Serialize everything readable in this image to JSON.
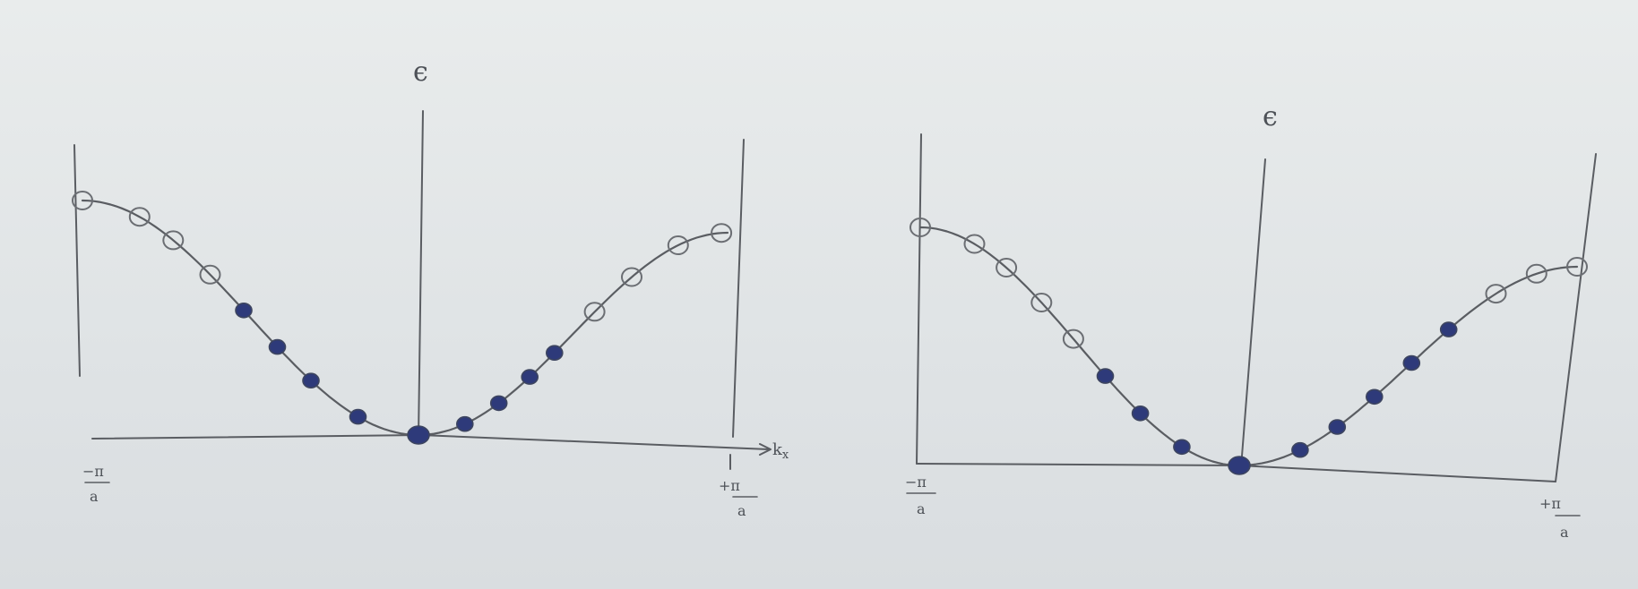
{
  "left_diagram": {
    "energy_label": "ϵ",
    "x_axis_label": "k",
    "x_axis_subscript": "x",
    "tick_left_num": "−π",
    "tick_left_den": "a",
    "tick_right_num": "+π",
    "tick_right_den": "a",
    "states": [
      {
        "k": -1.0,
        "filled": false
      },
      {
        "k": -0.83,
        "filled": false
      },
      {
        "k": -0.73,
        "filled": false
      },
      {
        "k": -0.62,
        "filled": false
      },
      {
        "k": -0.52,
        "filled": true
      },
      {
        "k": -0.42,
        "filled": true
      },
      {
        "k": -0.32,
        "filled": true
      },
      {
        "k": -0.18,
        "filled": true
      },
      {
        "k": 0.0,
        "filled": true
      },
      {
        "k": 0.15,
        "filled": true
      },
      {
        "k": 0.26,
        "filled": true
      },
      {
        "k": 0.36,
        "filled": true
      },
      {
        "k": 0.44,
        "filled": true
      },
      {
        "k": 0.57,
        "filled": false
      },
      {
        "k": 0.69,
        "filled": false
      },
      {
        "k": 0.84,
        "filled": false
      },
      {
        "k": 0.98,
        "filled": false
      }
    ]
  },
  "right_diagram": {
    "energy_label": "ϵ",
    "tick_left_num": "−π",
    "tick_left_den": "a",
    "tick_right_num": "+π",
    "tick_right_den": "a",
    "states": [
      {
        "k": -1.0,
        "filled": false
      },
      {
        "k": -0.83,
        "filled": false
      },
      {
        "k": -0.73,
        "filled": false
      },
      {
        "k": -0.62,
        "filled": false
      },
      {
        "k": -0.52,
        "filled": false
      },
      {
        "k": -0.42,
        "filled": true
      },
      {
        "k": -0.31,
        "filled": true
      },
      {
        "k": -0.18,
        "filled": true
      },
      {
        "k": 0.0,
        "filled": true
      },
      {
        "k": 0.18,
        "filled": true
      },
      {
        "k": 0.29,
        "filled": true
      },
      {
        "k": 0.4,
        "filled": true
      },
      {
        "k": 0.51,
        "filled": true
      },
      {
        "k": 0.62,
        "filled": true
      },
      {
        "k": 0.76,
        "filled": false
      },
      {
        "k": 0.88,
        "filled": false
      },
      {
        "k": 1.0,
        "filled": false
      }
    ]
  }
}
